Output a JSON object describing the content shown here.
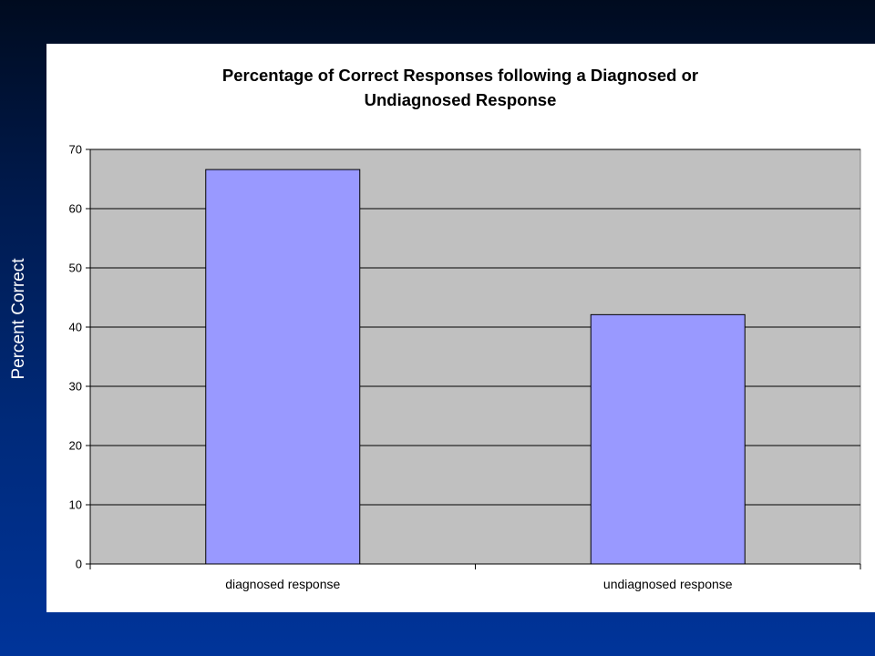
{
  "slide": {
    "ylabel": "Percent Correct"
  },
  "chart_data": {
    "type": "bar",
    "title": "Percentage of Correct Responses following a Diagnosed or Undiagnosed Response",
    "title_lines": [
      "Percentage of Correct Responses following a Diagnosed or",
      "Undiagnosed Response"
    ],
    "categories": [
      "diagnosed response",
      "undiagnosed response"
    ],
    "values": [
      66.6,
      42.1
    ],
    "ylim": [
      0,
      70
    ],
    "yticks": [
      0,
      10,
      20,
      30,
      40,
      50,
      60,
      70
    ],
    "xlabel": "",
    "ylabel": "Percent Correct",
    "grid": true,
    "legend": "none",
    "colors": {
      "bar": "#9999ff",
      "plot_background": "#c0c0c0",
      "gridline": "#000000",
      "panel": "#ffffff"
    }
  }
}
